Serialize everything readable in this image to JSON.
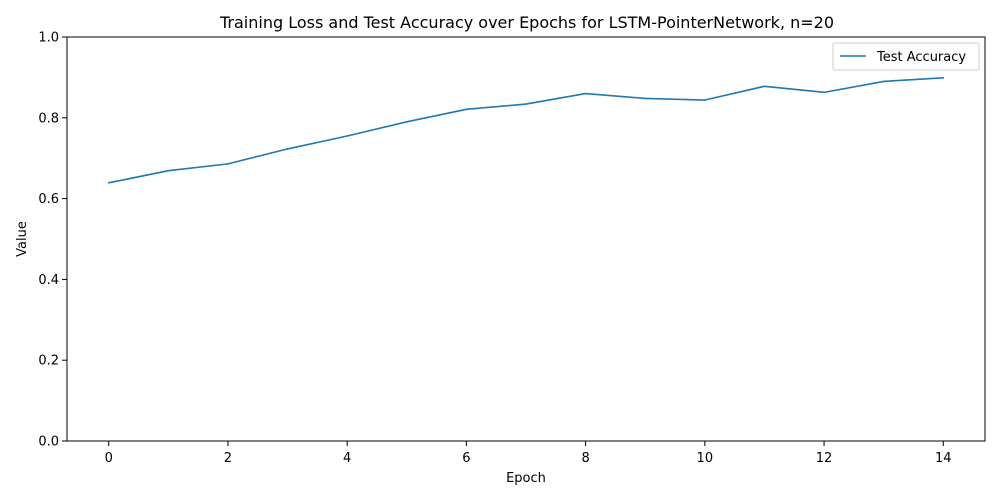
{
  "chart_data": {
    "type": "line",
    "title": "Training Loss and Test Accuracy over Epochs for LSTM-PointerNetwork, n=20",
    "xlabel": "Epoch",
    "ylabel": "Value",
    "xlim": [
      -0.7,
      14.7
    ],
    "ylim": [
      0.0,
      1.0
    ],
    "xticks": [
      0,
      2,
      4,
      6,
      8,
      10,
      12,
      14
    ],
    "yticks": [
      0.0,
      0.2,
      0.4,
      0.6,
      0.8,
      1.0
    ],
    "grid": false,
    "legend_position": "top-right",
    "x": [
      0,
      1,
      2,
      3,
      4,
      5,
      6,
      7,
      8,
      9,
      10,
      11,
      12,
      13,
      14
    ],
    "series": [
      {
        "name": "Test Accuracy",
        "color": "#1f77b4",
        "values": [
          0.639,
          0.669,
          0.686,
          0.723,
          0.755,
          0.79,
          0.821,
          0.834,
          0.86,
          0.848,
          0.844,
          0.878,
          0.863,
          0.89,
          0.899
        ]
      }
    ]
  }
}
